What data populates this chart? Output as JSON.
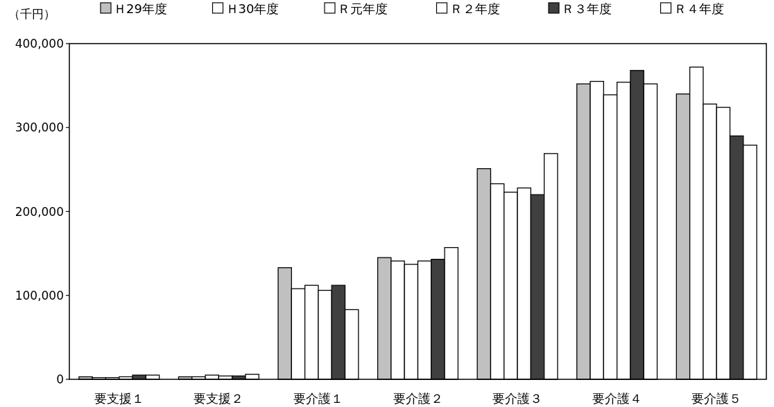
{
  "chart_data": {
    "type": "bar",
    "ylabel": "（千円）",
    "categories": [
      "要支援１",
      "要支援２",
      "要介護１",
      "要介護２",
      "要介護３",
      "要介護４",
      "要介護５"
    ],
    "series": [
      {
        "name": "Ｈ29年度",
        "color": "#c0c0c0",
        "values": [
          3000,
          3000,
          133000,
          145000,
          251000,
          352000,
          340000
        ]
      },
      {
        "name": "Ｈ30年度",
        "color": "#ffffff",
        "values": [
          2000,
          3000,
          108000,
          141000,
          233000,
          355000,
          372000
        ]
      },
      {
        "name": "Ｒ元年度",
        "color": "#ffffff",
        "values": [
          2000,
          5000,
          112000,
          137000,
          223000,
          339000,
          328000
        ]
      },
      {
        "name": "Ｒ２年度",
        "color": "#ffffff",
        "values": [
          3000,
          4000,
          106000,
          141000,
          228000,
          354000,
          324000
        ]
      },
      {
        "name": "Ｒ３年度",
        "color": "#404040",
        "values": [
          5000,
          4000,
          112000,
          143000,
          220000,
          368000,
          290000
        ]
      },
      {
        "name": "Ｒ４年度",
        "color": "#ffffff",
        "values": [
          5000,
          6000,
          83000,
          157000,
          269000,
          352000,
          279000
        ]
      }
    ],
    "ylim": [
      0,
      400000
    ],
    "yticks": [
      0,
      {
        "value": 100000,
        "label": "100,000"
      },
      {
        "value": 200000,
        "label": "200,000"
      },
      {
        "value": 300000,
        "label": "300,000"
      },
      {
        "value": 400000,
        "label": "400,000"
      }
    ],
    "grid": false,
    "legend": "top"
  }
}
